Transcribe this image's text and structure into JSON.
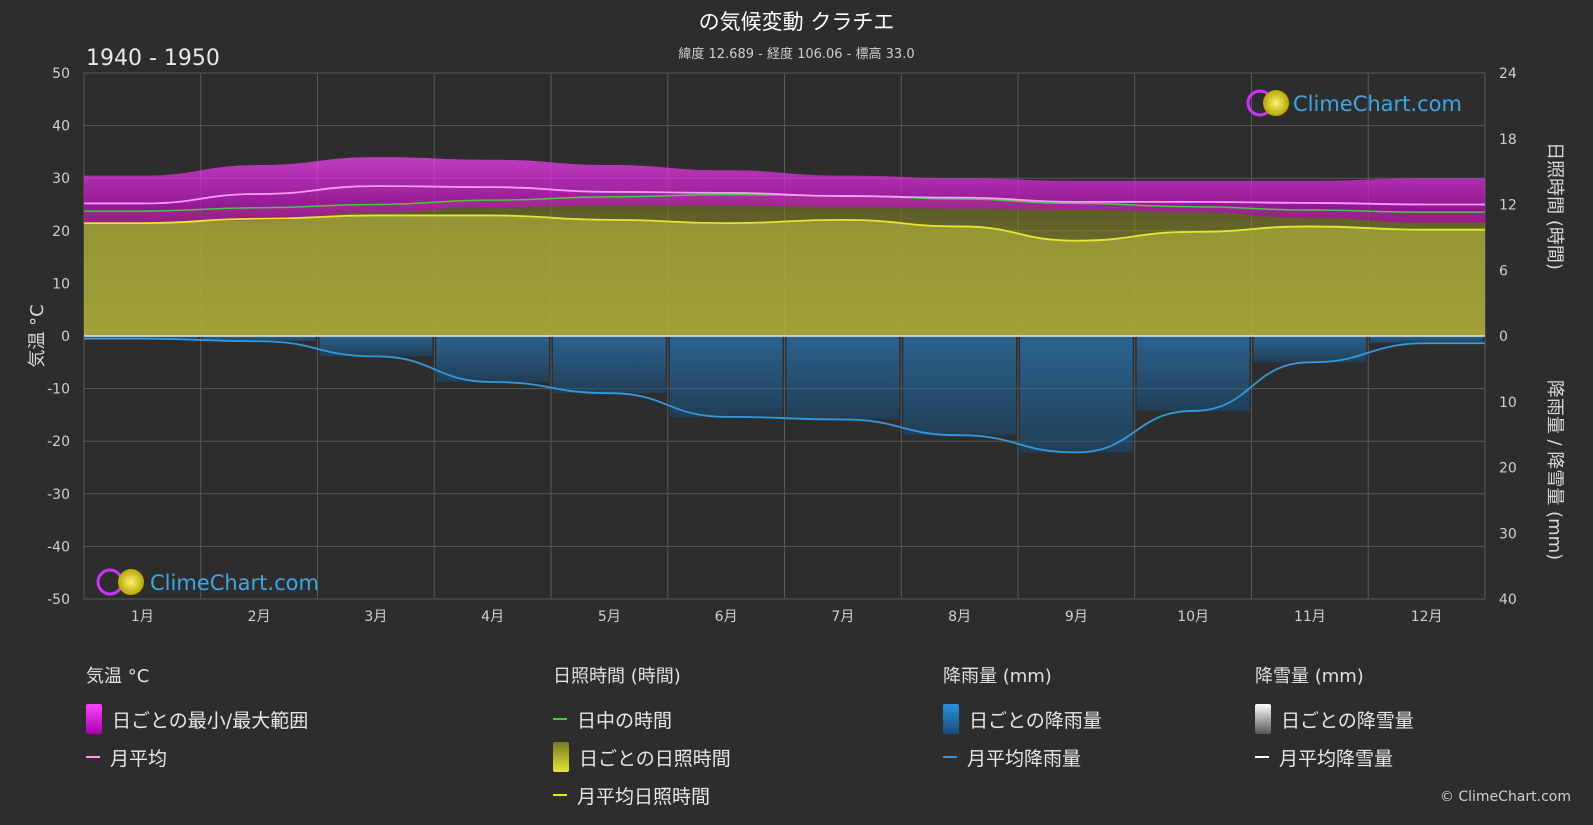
{
  "header": {
    "title": "の気候変動 クラチエ",
    "subtitle": "緯度 12.689 - 経度 106.06 - 標高 33.0",
    "period": "1940 - 1950"
  },
  "axes": {
    "left_label": "気温 °C",
    "right_top_label": "日照時間 (時間)",
    "right_bottom_label": "降雨量 / 降雪量 (mm)"
  },
  "brand": {
    "name": "ClimeChart.com",
    "copyright": "© ClimeChart.com"
  },
  "legend": {
    "temperature": {
      "heading": "気温 °C",
      "range": "日ごとの最小/最大範囲",
      "mean": "月平均"
    },
    "sunshine": {
      "heading": "日照時間 (時間)",
      "daylight": "日中の時間",
      "daily_sun": "日ごとの日照時間",
      "mean_sun": "月平均日照時間"
    },
    "rain": {
      "heading": "降雨量 (mm)",
      "daily": "日ごとの降雨量",
      "mean": "月平均降雨量"
    },
    "snow": {
      "heading": "降雪量 (mm)",
      "daily": "日ごとの降雪量",
      "mean": "月平均降雪量"
    }
  },
  "colors": {
    "background": "#2d2d2d",
    "temp_range": "#cc22cc",
    "temp_mean": "#ff99ff",
    "daylight": "#44cc44",
    "sunshine_fill": "#9c9c2e",
    "sunshine_mean": "#e6e632",
    "rain_bars": "#1f6fa8",
    "rain_mean": "#3399dd",
    "snow": "#ffffff",
    "brand": "#3fa6e6"
  },
  "chart_data": {
    "type": "area",
    "categories": [
      "1月",
      "2月",
      "3月",
      "4月",
      "5月",
      "6月",
      "7月",
      "8月",
      "9月",
      "10月",
      "11月",
      "12月"
    ],
    "left_axis": {
      "label": "気温 °C",
      "ylim": [
        -50,
        50
      ],
      "ticks": [
        50,
        40,
        30,
        20,
        10,
        0,
        -10,
        -20,
        -30,
        -40,
        -50
      ]
    },
    "right_axis_sun": {
      "label": "日照時間 (時間)",
      "ylim": [
        0,
        24
      ],
      "ticks": [
        24,
        18,
        12,
        6,
        0
      ]
    },
    "right_axis_precip": {
      "label": "降雨量 / 降雪量 (mm)",
      "ylim": [
        0,
        40
      ],
      "ticks": [
        0,
        10,
        20,
        30,
        40
      ]
    },
    "grid": true,
    "series": [
      {
        "name": "月平均",
        "axis": "temperature",
        "values": [
          25.2,
          27.0,
          28.5,
          28.3,
          27.4,
          27.2,
          26.6,
          26.3,
          25.5,
          25.5,
          25.3,
          25.0
        ]
      },
      {
        "name": "日ごとの最小/最大範囲",
        "axis": "temperature",
        "min": [
          21.5,
          22.0,
          23.5,
          24.5,
          24.8,
          24.8,
          24.5,
          24.2,
          24.0,
          23.5,
          22.5,
          21.5
        ],
        "max": [
          30.5,
          32.5,
          34.0,
          33.5,
          32.5,
          31.5,
          30.5,
          30.0,
          29.5,
          29.5,
          29.5,
          30.0
        ]
      },
      {
        "name": "日中の時間",
        "axis": "sunshine",
        "values": [
          11.4,
          11.7,
          12.0,
          12.4,
          12.7,
          12.9,
          12.8,
          12.5,
          12.1,
          11.8,
          11.5,
          11.3
        ]
      },
      {
        "name": "月平均日照時間",
        "axis": "sunshine",
        "values": [
          10.3,
          10.7,
          11.0,
          11.0,
          10.6,
          10.3,
          10.6,
          10.0,
          8.7,
          9.5,
          10.0,
          9.7
        ]
      },
      {
        "name": "月平均降雨量",
        "axis": "precip",
        "values": [
          0.4,
          0.8,
          3.1,
          7.0,
          8.7,
          12.3,
          12.7,
          15.1,
          17.7,
          11.4,
          4.0,
          1.1
        ]
      },
      {
        "name": "月平均降雪量",
        "axis": "precip",
        "values": [
          0,
          0,
          0,
          0,
          0,
          0,
          0,
          0,
          0,
          0,
          0,
          0
        ]
      }
    ]
  }
}
